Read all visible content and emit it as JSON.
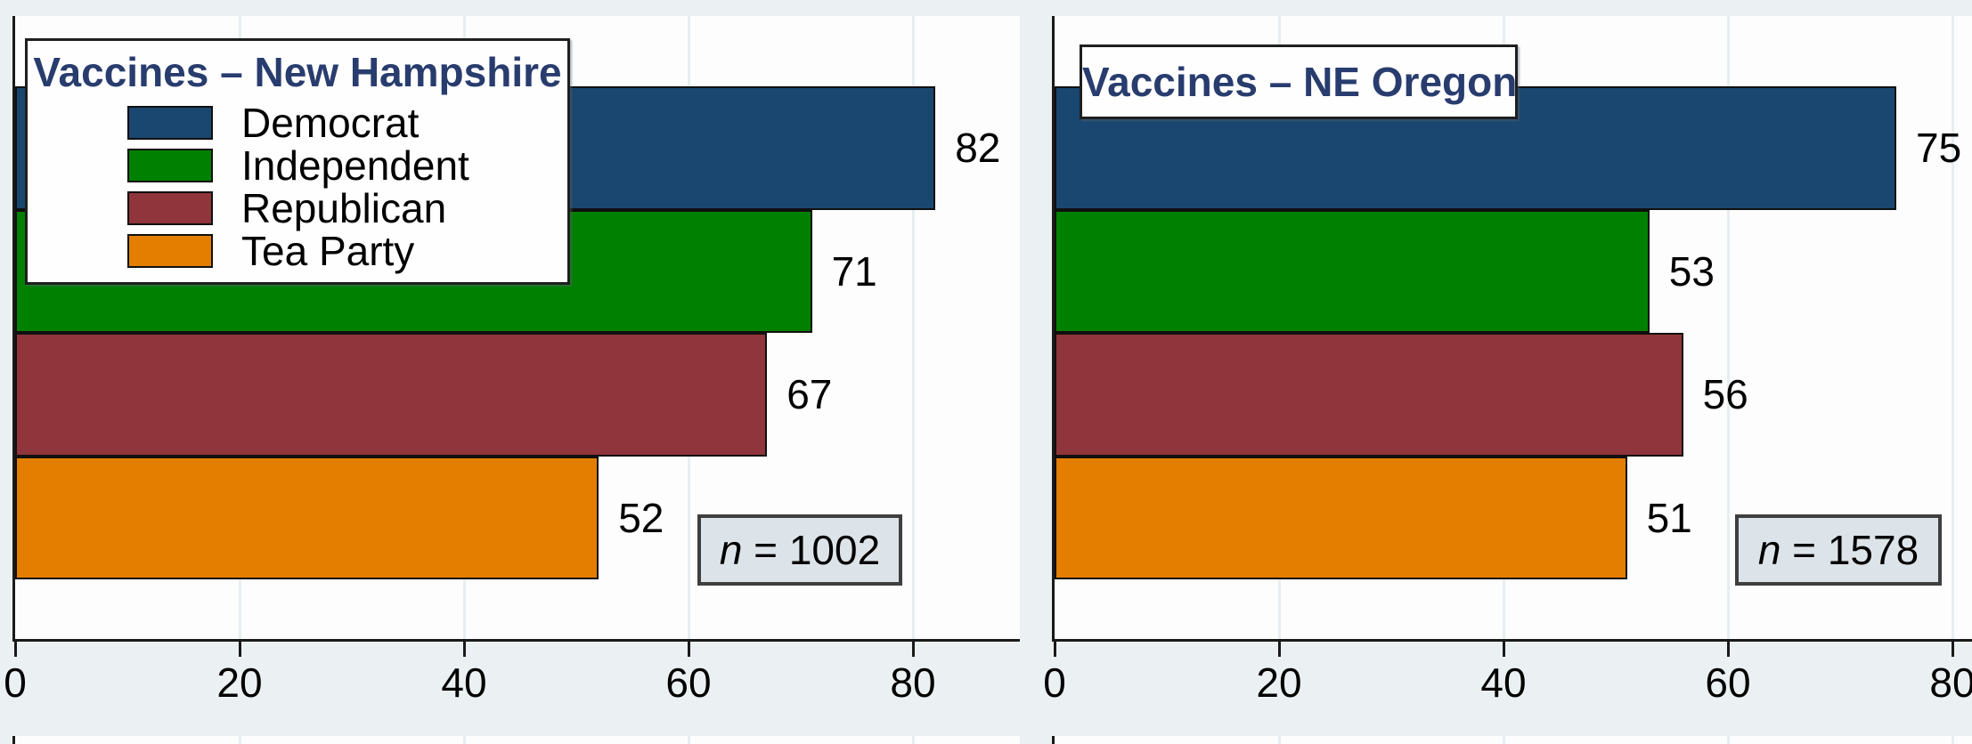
{
  "palette": {
    "figure_bg": "#ebf1f3",
    "plot_bg": "#fdfdfd",
    "gridline": "#e7eef1",
    "axis": "#1a1a1a",
    "box_border": "#1f1f1f",
    "title_color": "#283c6e",
    "nbox_bg": "#dde4e9",
    "nbox_border": "#3f3f3f",
    "democrat": "#1a476f",
    "independent": "#008000",
    "republican": "#90353b",
    "tea_party": "#e37e00"
  },
  "chart_data": [
    {
      "type": "bar",
      "orientation": "horizontal",
      "title": "Vaccines – New Hampshire",
      "categories": [
        "Democrat",
        "Independent",
        "Republican",
        "Tea Party"
      ],
      "values": [
        82,
        71,
        67,
        52
      ],
      "colors": [
        "#1a476f",
        "#008000",
        "#90353b",
        "#e37e00"
      ],
      "x_ticks": [
        "0",
        "20",
        "40",
        "60",
        "80"
      ],
      "x_tick_values": [
        0,
        20,
        40,
        60,
        80
      ],
      "xlim": [
        0,
        89
      ],
      "grid": true,
      "legend_position": "top-left",
      "show_legend": true,
      "n_label": {
        "var": "n",
        "eq_value": " = 1002"
      }
    },
    {
      "type": "bar",
      "orientation": "horizontal",
      "title": "Vaccines – NE Oregon",
      "categories": [
        "Democrat",
        "Independent",
        "Republican",
        "Tea Party"
      ],
      "values": [
        75,
        53,
        56,
        51
      ],
      "colors": [
        "#1a476f",
        "#008000",
        "#90353b",
        "#e37e00"
      ],
      "x_ticks": [
        "0",
        "20",
        "40",
        "60",
        "80"
      ],
      "x_tick_values": [
        0,
        20,
        40,
        60,
        80
      ],
      "xlim": [
        0,
        82
      ],
      "grid": true,
      "legend_position": "none",
      "show_legend": false,
      "n_label": {
        "var": "n",
        "eq_value": " = 1578"
      }
    }
  ]
}
